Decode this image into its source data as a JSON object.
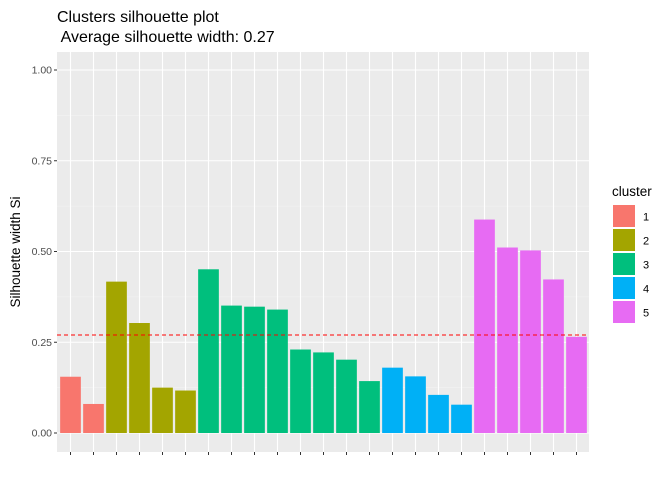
{
  "chart_data": {
    "type": "bar",
    "title": "Clusters silhouette plot",
    "subtitle": " Average silhouette width: 0.27",
    "xlabel": "",
    "ylabel": "Silhouette width Si",
    "ylim": [
      0,
      1
    ],
    "yticks": [
      0.0,
      0.25,
      0.5,
      0.75,
      1.0
    ],
    "ytick_labels": [
      "0.00",
      "0.25",
      "0.50",
      "0.75",
      "1.00"
    ],
    "grid": true,
    "average_line": 0.27,
    "average_line_color": "#ff0000",
    "legend": {
      "title": "cluster",
      "placement": "right",
      "entries": [
        {
          "label": "1",
          "color": "#F8766D"
        },
        {
          "label": "2",
          "color": "#A3A500"
        },
        {
          "label": "3",
          "color": "#00BF7D"
        },
        {
          "label": "4",
          "color": "#00B0F6"
        },
        {
          "label": "5",
          "color": "#E76BF3"
        }
      ]
    },
    "bars": [
      {
        "cluster": "1",
        "value": 0.155
      },
      {
        "cluster": "1",
        "value": 0.08
      },
      {
        "cluster": "2",
        "value": 0.417
      },
      {
        "cluster": "2",
        "value": 0.303
      },
      {
        "cluster": "2",
        "value": 0.125
      },
      {
        "cluster": "2",
        "value": 0.117
      },
      {
        "cluster": "3",
        "value": 0.451
      },
      {
        "cluster": "3",
        "value": 0.351
      },
      {
        "cluster": "3",
        "value": 0.348
      },
      {
        "cluster": "3",
        "value": 0.34
      },
      {
        "cluster": "3",
        "value": 0.23
      },
      {
        "cluster": "3",
        "value": 0.222
      },
      {
        "cluster": "3",
        "value": 0.202
      },
      {
        "cluster": "3",
        "value": 0.143
      },
      {
        "cluster": "4",
        "value": 0.18
      },
      {
        "cluster": "4",
        "value": 0.156
      },
      {
        "cluster": "4",
        "value": 0.105
      },
      {
        "cluster": "4",
        "value": 0.078
      },
      {
        "cluster": "5",
        "value": 0.588
      },
      {
        "cluster": "5",
        "value": 0.511
      },
      {
        "cluster": "5",
        "value": 0.503
      },
      {
        "cluster": "5",
        "value": 0.423
      },
      {
        "cluster": "5",
        "value": 0.265
      }
    ],
    "colors": {
      "panel_background": "#EBEBEB",
      "grid_major": "#FFFFFF",
      "grid_minor": "#F5F5F5"
    }
  }
}
